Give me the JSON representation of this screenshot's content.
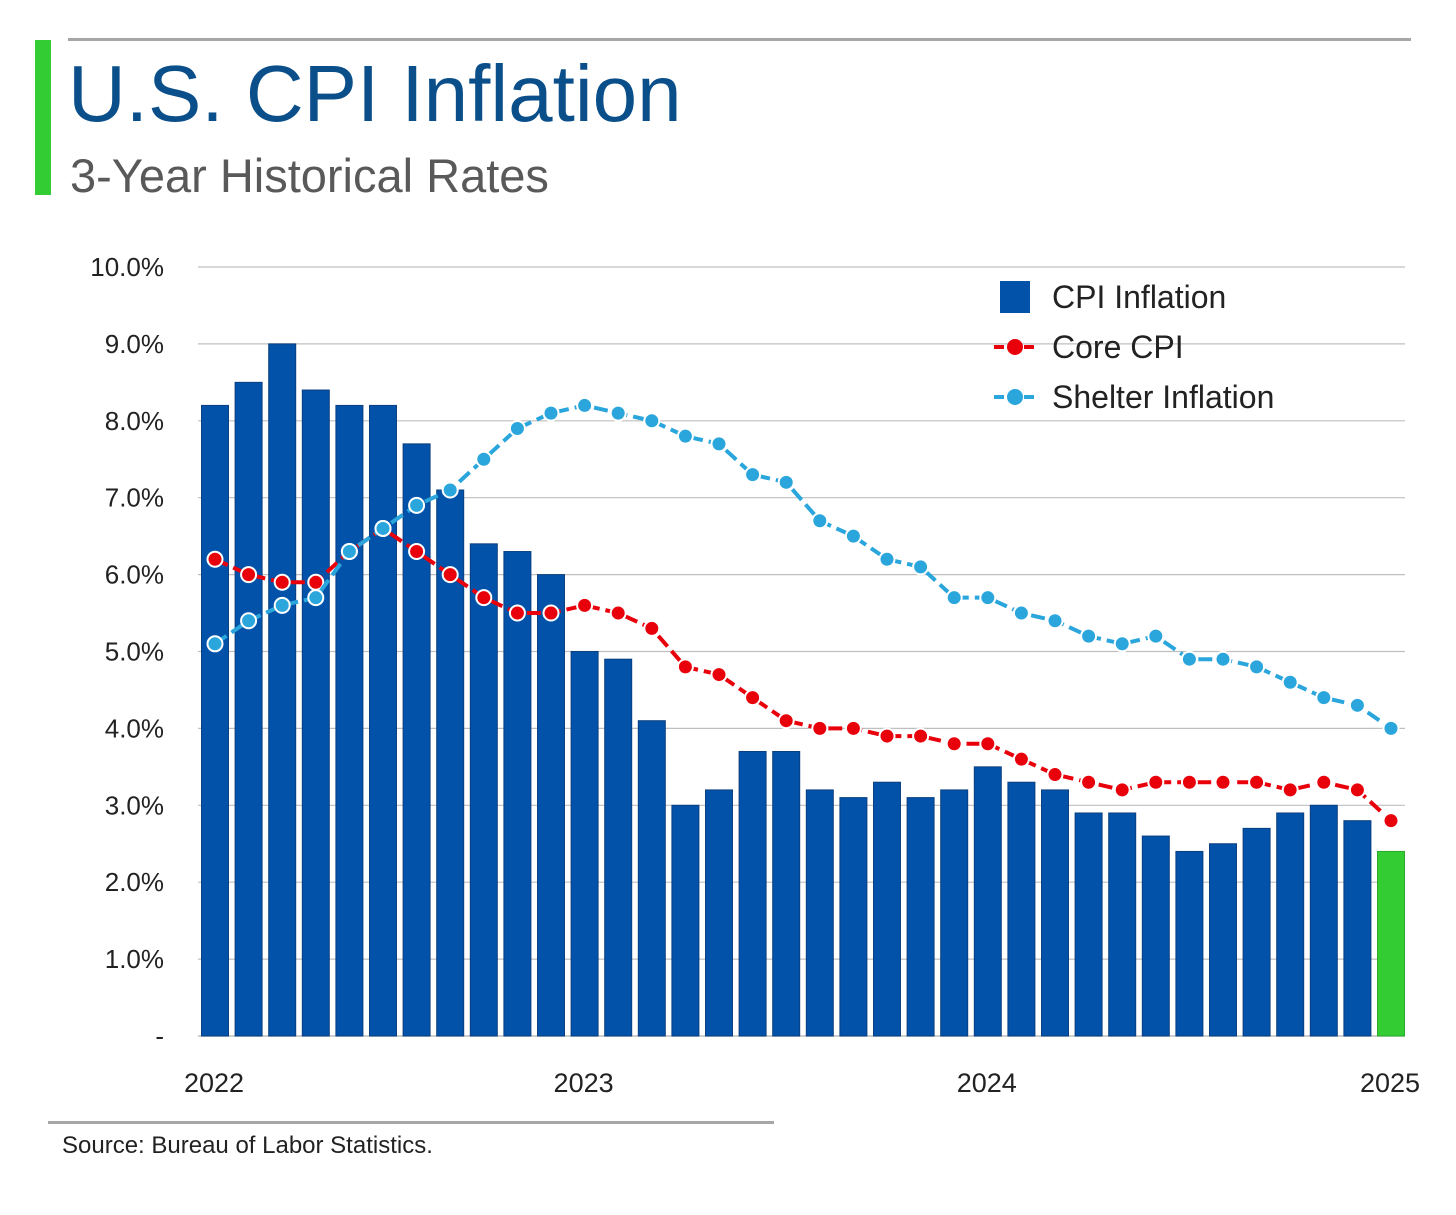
{
  "header": {
    "title": "U.S. CPI Inflation",
    "subtitle": "3-Year Historical Rates"
  },
  "footer": {
    "source": "Source: Bureau of Labor Statistics."
  },
  "colors": {
    "accent": "#33cc33",
    "title": "#0b4f8a",
    "cpi_bar": "#0152a8",
    "latest_bar": "#33cc33",
    "core_cpi": "#e8000b",
    "shelter": "#2aa6dc"
  },
  "chart_data": {
    "type": "bar",
    "title": "U.S. CPI Inflation",
    "subtitle": "3-Year Historical Rates",
    "xlabel": "",
    "ylabel": "",
    "ylim": [
      0,
      10
    ],
    "yticks": [
      {
        "value": 0,
        "label": "-"
      },
      {
        "value": 1,
        "label": "1.0%"
      },
      {
        "value": 2,
        "label": "2.0%"
      },
      {
        "value": 3,
        "label": "3.0%"
      },
      {
        "value": 4,
        "label": "4.0%"
      },
      {
        "value": 5,
        "label": "5.0%"
      },
      {
        "value": 6,
        "label": "6.0%"
      },
      {
        "value": 7,
        "label": "7.0%"
      },
      {
        "value": 8,
        "label": "8.0%"
      },
      {
        "value": 9,
        "label": "9.0%"
      },
      {
        "value": 10,
        "label": "10.0%"
      }
    ],
    "xticks": [
      {
        "index": 0,
        "label": "2022"
      },
      {
        "index": 11,
        "label": "2023"
      },
      {
        "index": 23,
        "label": "2024"
      },
      {
        "index": 35,
        "label": "2025"
      }
    ],
    "grid": true,
    "legend_position": "top-right",
    "series": [
      {
        "name": "CPI Inflation",
        "type": "bar",
        "values": [
          8.2,
          8.5,
          9.0,
          8.4,
          8.2,
          8.2,
          7.7,
          7.1,
          6.4,
          6.3,
          6.0,
          5.0,
          4.9,
          4.1,
          3.0,
          3.2,
          3.7,
          3.7,
          3.2,
          3.1,
          3.3,
          3.1,
          3.2,
          3.5,
          3.3,
          3.2,
          2.9,
          2.9,
          2.6,
          2.4,
          2.5,
          2.7,
          2.9,
          3.0,
          2.8,
          2.4
        ]
      },
      {
        "name": "Core CPI",
        "type": "line",
        "values": [
          6.2,
          6.0,
          5.9,
          5.9,
          6.3,
          6.6,
          6.3,
          6.0,
          5.7,
          5.5,
          5.5,
          5.6,
          5.5,
          5.3,
          4.8,
          4.7,
          4.4,
          4.1,
          4.0,
          4.0,
          3.9,
          3.9,
          3.8,
          3.8,
          3.6,
          3.4,
          3.3,
          3.2,
          3.3,
          3.3,
          3.3,
          3.3,
          3.2,
          3.3,
          3.2,
          2.8
        ]
      },
      {
        "name": "Shelter Inflation",
        "type": "line",
        "values": [
          5.1,
          5.4,
          5.6,
          5.7,
          6.3,
          6.6,
          6.9,
          7.1,
          7.5,
          7.9,
          8.1,
          8.2,
          8.1,
          8.0,
          7.8,
          7.7,
          7.3,
          7.2,
          6.7,
          6.5,
          6.2,
          6.1,
          5.7,
          5.7,
          5.5,
          5.4,
          5.2,
          5.1,
          5.2,
          4.9,
          4.9,
          4.8,
          4.6,
          4.4,
          4.3,
          4.0
        ]
      }
    ]
  }
}
